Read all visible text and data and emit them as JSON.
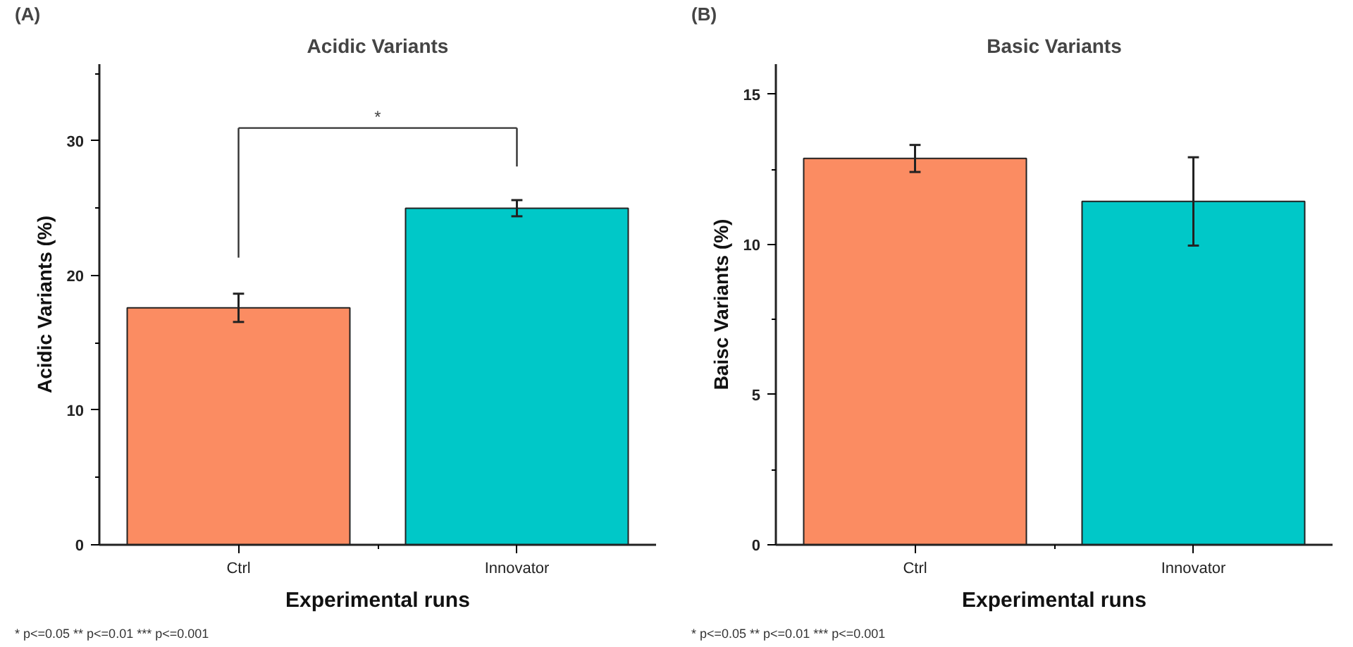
{
  "chart_data": [
    {
      "type": "bar",
      "title": "Acidic Variants",
      "xlabel": "Experimental runs",
      "ylabel": "Acidic Variants (%)",
      "categories": [
        "Ctrl",
        "Innovator"
      ],
      "values": [
        17.6,
        25.0
      ],
      "colors": [
        "#fb8c62",
        "#00c8c8"
      ],
      "errors": [
        1.05,
        0.6
      ],
      "ylim": [
        0,
        35.7
      ],
      "yticks": [
        0,
        10,
        20,
        30
      ],
      "grid": false,
      "annotations": [
        "(A)",
        "* p<=0.05   ** p<=0.01   *** p<=0.001",
        "*"
      ]
    },
    {
      "type": "bar",
      "title": "Basic Variants",
      "xlabel": "Experimental runs",
      "ylabel": "Baisc Variants (%)",
      "categories": [
        "Ctrl",
        "Innovator"
      ],
      "values": [
        12.86,
        11.43
      ],
      "colors": [
        "#fb8c62",
        "#00c8c8"
      ],
      "errors": [
        0.45,
        1.47
      ],
      "ylim": [
        0,
        16
      ],
      "yticks": [
        0,
        5,
        10,
        15
      ],
      "grid": false,
      "annotations": [
        "(B)",
        "* p<=0.05   ** p<=0.01   *** p<=0.001"
      ]
    }
  ]
}
